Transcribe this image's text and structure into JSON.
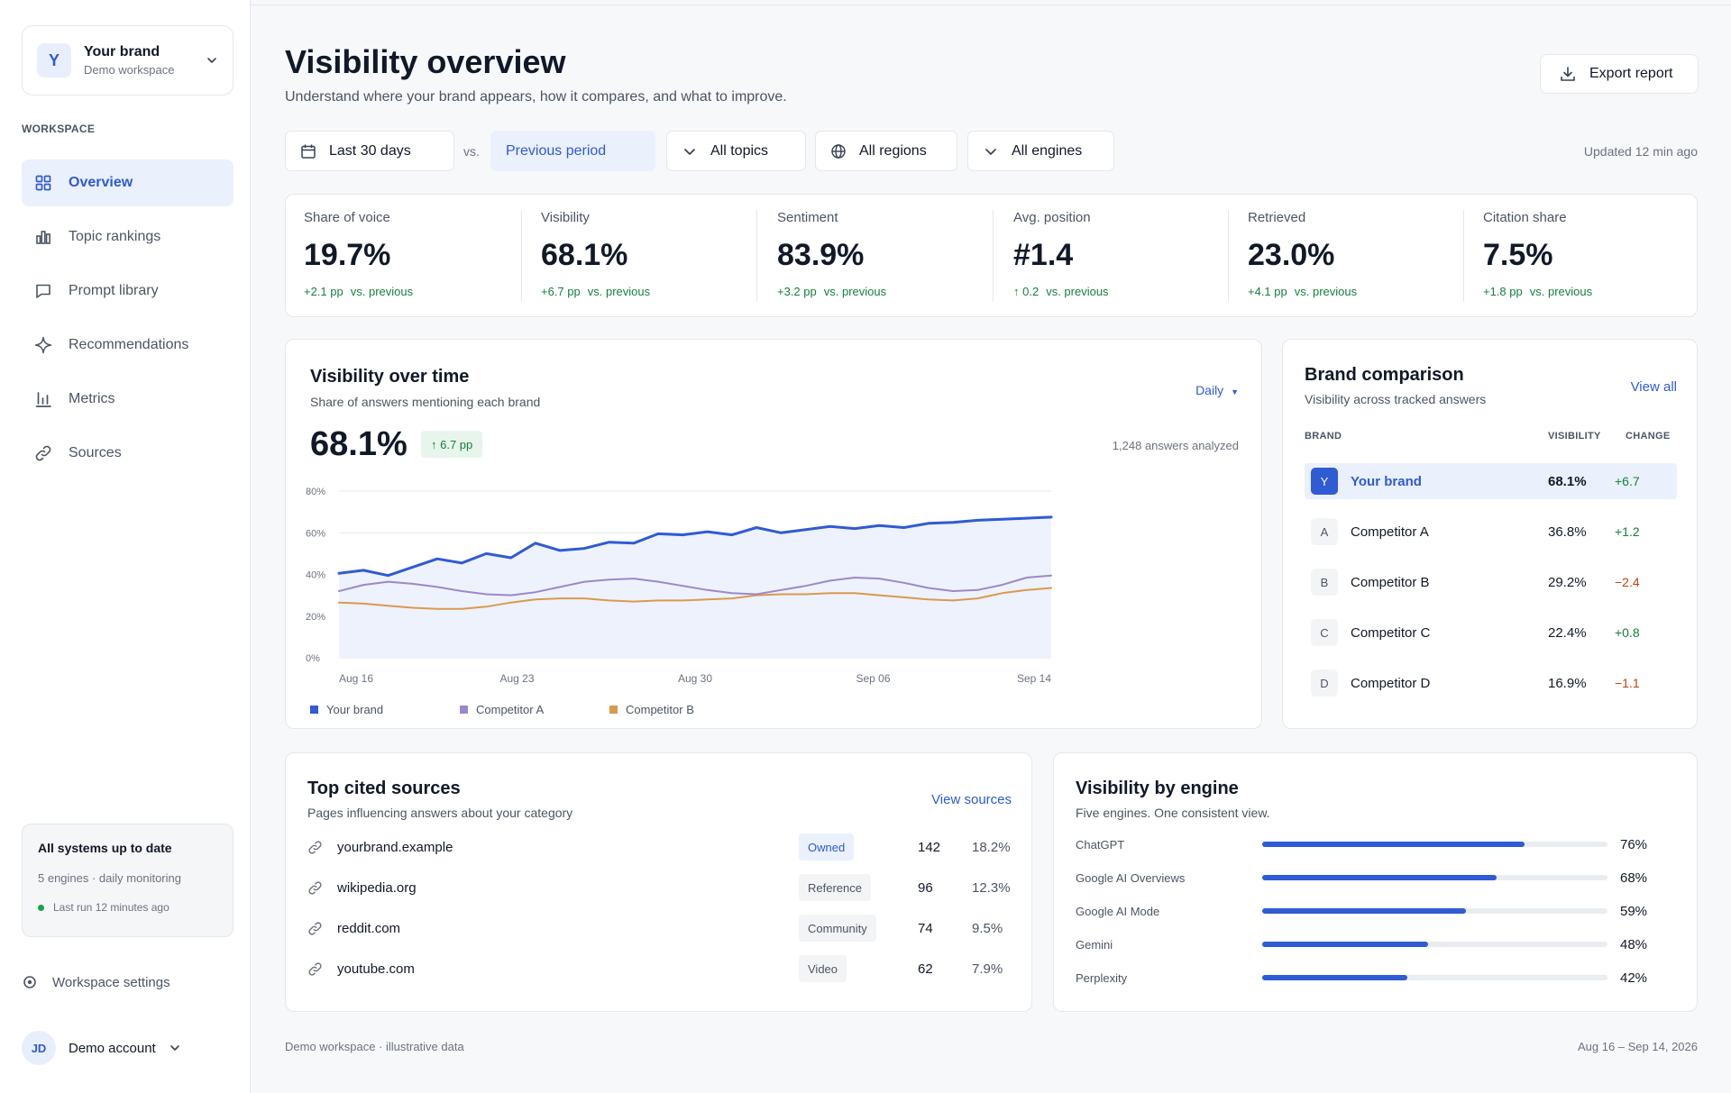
{
  "brand_switcher": {
    "avatar": "Y",
    "name": "Your brand",
    "workspace": "Demo workspace"
  },
  "sidebar": {
    "section_label": "WORKSPACE",
    "items": [
      {
        "label": "Overview",
        "icon": "grid-icon",
        "active": true
      },
      {
        "label": "Topic rankings",
        "icon": "bar-chart-icon"
      },
      {
        "label": "Prompt library",
        "icon": "chat-bubble-icon"
      },
      {
        "label": "Recommendations",
        "icon": "sparkle-icon"
      },
      {
        "label": "Metrics",
        "icon": "metrics-icon"
      },
      {
        "label": "Sources",
        "icon": "link-icon"
      }
    ],
    "status": {
      "title": "All systems up to date",
      "subtitle": "5 engines · daily monitoring",
      "last_run": "Last run 12 minutes ago"
    },
    "settings_label": "Workspace settings",
    "account": {
      "initials": "JD",
      "name": "Demo account"
    }
  },
  "header": {
    "title": "Visibility overview",
    "subtitle": "Understand where your brand appears, how it compares, and what to improve.",
    "export_label": "Export report"
  },
  "filters": {
    "date_range": "Last 30 days",
    "vs_label": "vs.",
    "compare": "Previous period",
    "topics": "All topics",
    "regions": "All regions",
    "engines": "All engines",
    "updated": "Updated 12 min ago"
  },
  "kpis": [
    {
      "label": "Share of voice",
      "value": "19.7%",
      "delta": "+2.1 pp",
      "suffix": "vs. previous"
    },
    {
      "label": "Visibility",
      "value": "68.1%",
      "delta": "+6.7 pp",
      "suffix": "vs. previous"
    },
    {
      "label": "Sentiment",
      "value": "83.9%",
      "delta": "+3.2 pp",
      "suffix": "vs. previous"
    },
    {
      "label": "Avg. position",
      "value": "#1.4",
      "delta": "↑ 0.2",
      "suffix": "vs. previous"
    },
    {
      "label": "Retrieved",
      "value": "23.0%",
      "delta": "+4.1 pp",
      "suffix": "vs. previous"
    },
    {
      "label": "Citation share",
      "value": "7.5%",
      "delta": "+1.8 pp",
      "suffix": "vs. previous"
    }
  ],
  "visibility_card": {
    "title": "Visibility over time",
    "subtitle": "Share of answers mentioning each brand",
    "granularity": "Daily",
    "value": "68.1%",
    "change": "↑ 6.7 pp",
    "answers": "1,248 answers analyzed"
  },
  "chart_data": {
    "type": "line",
    "ylim": [
      0,
      80
    ],
    "yticks": [
      "0%",
      "20%",
      "40%",
      "60%",
      "80%"
    ],
    "xticks": [
      "Aug 16",
      "Aug 23",
      "Aug 30",
      "Sep 06",
      "Sep 14"
    ],
    "grid": true,
    "series": [
      {
        "name": "Your brand",
        "color": "#2f5bd3",
        "values": [
          40.5,
          42,
          39.5,
          43.5,
          47.5,
          45.5,
          50,
          48,
          55,
          51.5,
          52.5,
          55.5,
          55,
          59.5,
          59,
          60.5,
          59,
          62.5,
          60,
          61.5,
          63,
          62,
          63.5,
          62.5,
          64.5,
          65,
          66,
          66.5,
          67,
          67.5
        ]
      },
      {
        "name": "Competitor A",
        "color": "#9b88cc",
        "values": [
          32,
          35,
          36.5,
          35.5,
          34,
          32,
          30.5,
          30,
          31.5,
          34,
          36.5,
          37.5,
          38,
          36.5,
          34.5,
          32.5,
          31,
          30.5,
          32.5,
          34.5,
          37,
          38.5,
          38,
          36,
          33.5,
          32,
          32.5,
          35,
          38.5,
          39.5
        ]
      },
      {
        "name": "Competitor B",
        "color": "#d99a4e",
        "values": [
          26.5,
          26,
          25,
          24,
          23.5,
          23.5,
          24.5,
          26.5,
          28,
          28.5,
          28.5,
          27.5,
          27,
          27.5,
          27.5,
          28,
          28.5,
          30,
          30.5,
          30.5,
          31,
          31,
          30,
          29,
          28,
          27.5,
          28.5,
          31,
          32.5,
          33.5
        ]
      }
    ]
  },
  "brand_comparison": {
    "title": "Brand comparison",
    "subtitle": "Visibility across tracked answers",
    "view_all": "View all",
    "col_brand": "BRAND",
    "col_visibility": "VISIBILITY",
    "col_change": "CHANGE",
    "rows": [
      {
        "initial": "Y",
        "name": "Your brand",
        "visibility": "68.1%",
        "change": "+6.7",
        "positive": true
      },
      {
        "initial": "A",
        "name": "Competitor A",
        "visibility": "36.8%",
        "change": "+1.2",
        "positive": true
      },
      {
        "initial": "B",
        "name": "Competitor B",
        "visibility": "29.2%",
        "change": "−2.4",
        "positive": false
      },
      {
        "initial": "C",
        "name": "Competitor C",
        "visibility": "22.4%",
        "change": "+0.8",
        "positive": true
      },
      {
        "initial": "D",
        "name": "Competitor D",
        "visibility": "16.9%",
        "change": "−1.1",
        "positive": false
      }
    ]
  },
  "top_sources": {
    "title": "Top cited sources",
    "subtitle": "Pages influencing answers about your category",
    "view_label": "View sources",
    "rows": [
      {
        "domain": "yourbrand.example",
        "tag": "Owned",
        "count": "142",
        "pct": "18.2%"
      },
      {
        "domain": "wikipedia.org",
        "tag": "Reference",
        "count": "96",
        "pct": "12.3%"
      },
      {
        "domain": "reddit.com",
        "tag": "Community",
        "count": "74",
        "pct": "9.5%"
      },
      {
        "domain": "youtube.com",
        "tag": "Video",
        "count": "62",
        "pct": "7.9%"
      }
    ]
  },
  "engines": {
    "title": "Visibility by engine",
    "subtitle": "Five engines. One consistent view.",
    "rows": [
      {
        "name": "ChatGPT",
        "value": 0.76,
        "label": "76%"
      },
      {
        "name": "Google AI Overviews",
        "value": 0.68,
        "label": "68%"
      },
      {
        "name": "Google AI Mode",
        "value": 0.59,
        "label": "59%"
      },
      {
        "name": "Gemini",
        "value": 0.48,
        "label": "48%"
      },
      {
        "name": "Perplexity",
        "value": 0.42,
        "label": "42%"
      }
    ]
  },
  "footer": {
    "left": "Demo workspace · illustrative data",
    "right": "Aug 16 – Sep 14, 2026"
  },
  "colors": {
    "accent": "#2f5bd3",
    "positive": "#15803d",
    "negative": "#c2410c"
  }
}
